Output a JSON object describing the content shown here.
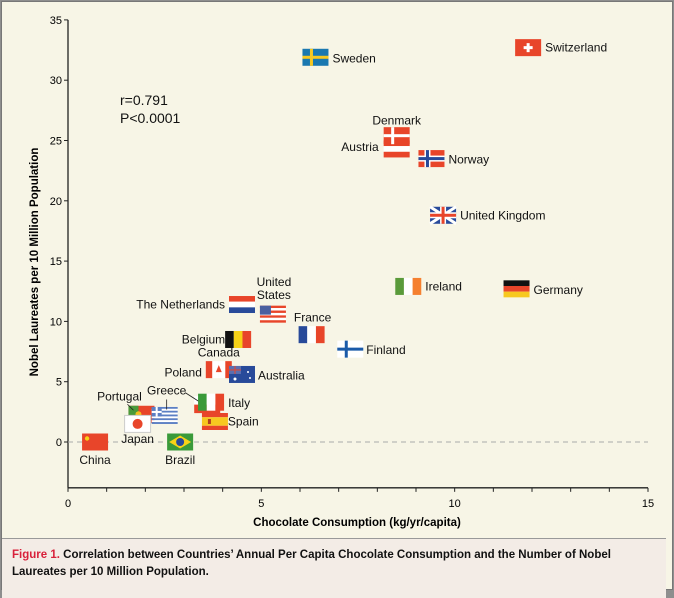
{
  "chart_data": {
    "type": "scatter",
    "xlabel": "Chocolate Consumption (kg/yr/capita)",
    "ylabel": "Nobel Laureates per 10 Million Population",
    "xlim": [
      0,
      15
    ],
    "ylim": [
      -3.8,
      35
    ],
    "xticks": [
      0,
      5,
      10,
      15
    ],
    "yticks": [
      0,
      5,
      10,
      15,
      20,
      25,
      30,
      35
    ],
    "grid": false,
    "reference_line": {
      "y": 0,
      "style": "dashed"
    },
    "annotations": [
      "r=0.791",
      "P<0.0001"
    ],
    "points": [
      {
        "label": "China",
        "x": 0.7,
        "y": 0.0
      },
      {
        "label": "Japan",
        "x": 1.8,
        "y": 1.5
      },
      {
        "label": "Portugal",
        "x": 1.9,
        "y": 2.3
      },
      {
        "label": "Greece",
        "x": 2.5,
        "y": 2.2
      },
      {
        "label": "Brazil",
        "x": 2.9,
        "y": 0.0
      },
      {
        "label": "Poland",
        "x": 3.6,
        "y": 3.1
      },
      {
        "label": "Spain",
        "x": 3.8,
        "y": 1.7
      },
      {
        "label": "Italy",
        "x": 3.7,
        "y": 3.3
      },
      {
        "label": "Canada",
        "x": 3.9,
        "y": 6.0
      },
      {
        "label": "Australia",
        "x": 4.5,
        "y": 5.6
      },
      {
        "label": "Belgium",
        "x": 4.4,
        "y": 8.5
      },
      {
        "label": "The Netherlands",
        "x": 4.5,
        "y": 11.4
      },
      {
        "label": "United States",
        "x": 5.3,
        "y": 10.6
      },
      {
        "label": "France",
        "x": 6.3,
        "y": 8.9
      },
      {
        "label": "Finland",
        "x": 7.3,
        "y": 7.7
      },
      {
        "label": "Sweden",
        "x": 6.4,
        "y": 31.9
      },
      {
        "label": "Switzerland",
        "x": 11.9,
        "y": 32.7
      },
      {
        "label": "Austria",
        "x": 8.5,
        "y": 24.3
      },
      {
        "label": "Denmark",
        "x": 8.5,
        "y": 25.4
      },
      {
        "label": "Norway",
        "x": 9.4,
        "y": 23.5
      },
      {
        "label": "United Kingdom",
        "x": 9.7,
        "y": 18.8
      },
      {
        "label": "Ireland",
        "x": 8.8,
        "y": 12.9
      },
      {
        "label": "Germany",
        "x": 11.6,
        "y": 12.7
      }
    ]
  },
  "caption": {
    "label": "Figure 1.",
    "text": "Correlation between Countries’ Annual Per Capita Chocolate Consumption and the Number of Nobel Laureates per 10 Million Population."
  },
  "colors": {
    "background": "#f7f5e6",
    "caption_bg": "#f3ece6",
    "figure_label": "#d8203a"
  }
}
